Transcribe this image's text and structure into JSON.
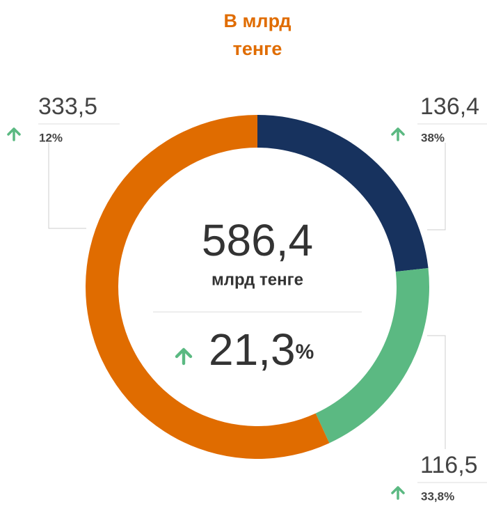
{
  "chart_data": {
    "type": "donut",
    "title_lines": [
      "В млрд",
      "тенге"
    ],
    "series": [
      {
        "values": [
          136.4,
          116.5,
          333.5
        ],
        "value_labels": [
          "136,4",
          "116,5",
          "333,5"
        ],
        "colors": [
          "#17325e",
          "#5bb982",
          "#e06c00"
        ],
        "changes": [
          38,
          33.8,
          12
        ],
        "change_labels": [
          "38%",
          "33,8%",
          "12%"
        ]
      }
    ],
    "total": 586.4,
    "total_label": "586,4",
    "total_unit": "млрд тенге",
    "total_change": 21.3,
    "total_change_label": "21,3",
    "total_change_unit": "%"
  }
}
